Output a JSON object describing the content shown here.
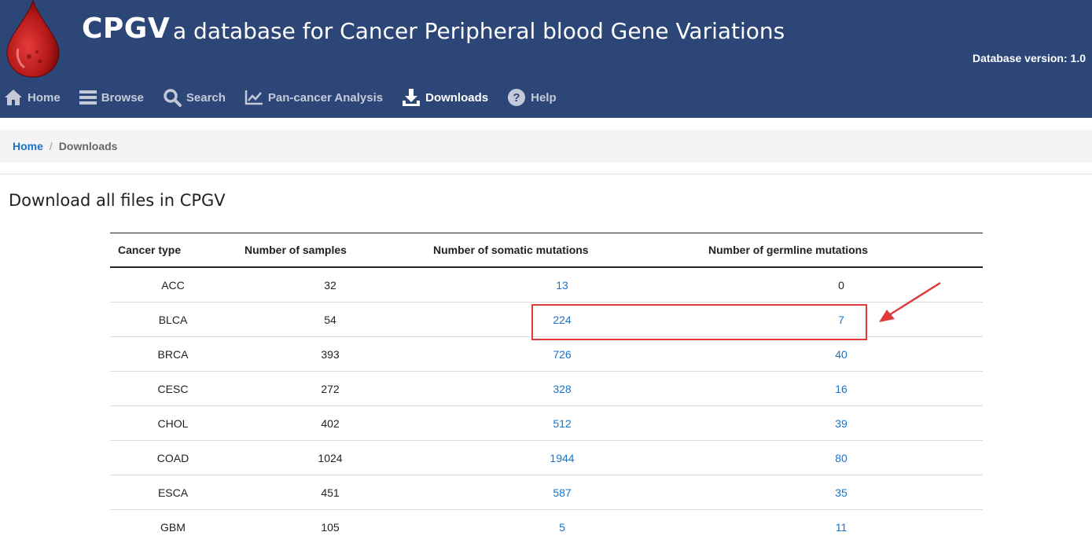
{
  "header": {
    "brand": "CPGV",
    "subtitle": "a database for Cancer Peripheral blood Gene Variations",
    "version": "Database version: 1.0",
    "bg_color": "#2d4678"
  },
  "nav": {
    "items": [
      {
        "label": "Home",
        "icon": "home-icon"
      },
      {
        "label": "Browse",
        "icon": "list-icon"
      },
      {
        "label": "Search",
        "icon": "search-icon"
      },
      {
        "label": "Pan-cancer Analysis",
        "icon": "chart-line-icon"
      },
      {
        "label": "Downloads",
        "icon": "download-icon",
        "active": true
      },
      {
        "label": "Help",
        "icon": "help-circle-icon"
      }
    ]
  },
  "breadcrumb": {
    "home": "Home",
    "separator": "/",
    "current": "Downloads"
  },
  "page_title": "Download all files in CPGV",
  "table": {
    "headers": [
      "Cancer type",
      "Number of samples",
      "Number of somatic mutations",
      "Number of germline mutations"
    ],
    "rows": [
      {
        "type": "ACC",
        "samples": "32",
        "somatic": "13",
        "germline": "0",
        "germline_link": false
      },
      {
        "type": "BLCA",
        "samples": "54",
        "somatic": "224",
        "germline": "7",
        "germline_link": true
      },
      {
        "type": "BRCA",
        "samples": "393",
        "somatic": "726",
        "germline": "40",
        "germline_link": true
      },
      {
        "type": "CESC",
        "samples": "272",
        "somatic": "328",
        "germline": "16",
        "germline_link": true
      },
      {
        "type": "CHOL",
        "samples": "402",
        "somatic": "512",
        "germline": "39",
        "germline_link": true
      },
      {
        "type": "COAD",
        "samples": "1024",
        "somatic": "1944",
        "germline": "80",
        "germline_link": true
      },
      {
        "type": "ESCA",
        "samples": "451",
        "somatic": "587",
        "germline": "35",
        "germline_link": true
      },
      {
        "type": "GBM",
        "samples": "105",
        "somatic": "5",
        "germline": "11",
        "germline_link": true
      }
    ]
  },
  "colors": {
    "link": "#1a73c9",
    "annotation": "#e03b3b"
  }
}
